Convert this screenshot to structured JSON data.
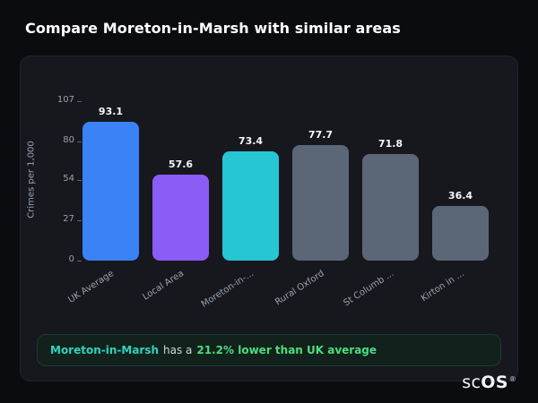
{
  "page_title": "Compare Moreton-in-Marsh with similar areas",
  "chart_data": {
    "type": "bar",
    "categories": [
      "UK Average",
      "Local Area",
      "Moreton-in-...",
      "Rural Oxford",
      "St Columb ...",
      "Kirton in ..."
    ],
    "values": [
      93.1,
      57.6,
      73.4,
      77.7,
      71.8,
      36.4
    ],
    "value_labels": [
      "93.1",
      "57.6",
      "73.4",
      "77.7",
      "71.8",
      "36.4"
    ],
    "bar_colors": [
      "#3b82f6",
      "#8b5cf6",
      "#26c6d4",
      "#5b6777",
      "#5b6777",
      "#5b6777"
    ],
    "title": "",
    "xlabel": "",
    "ylabel": "Crimes per 1,000",
    "yticks": [
      107,
      80,
      54,
      27,
      0
    ],
    "ylim": [
      0,
      107
    ],
    "grid": false,
    "legend": false
  },
  "summary": {
    "area": "Moreton-in-Marsh",
    "middle": "has a",
    "highlight": "21.2% lower than UK average"
  },
  "brand": {
    "part1": "sc",
    "part2": "OS",
    "reg": "®"
  }
}
